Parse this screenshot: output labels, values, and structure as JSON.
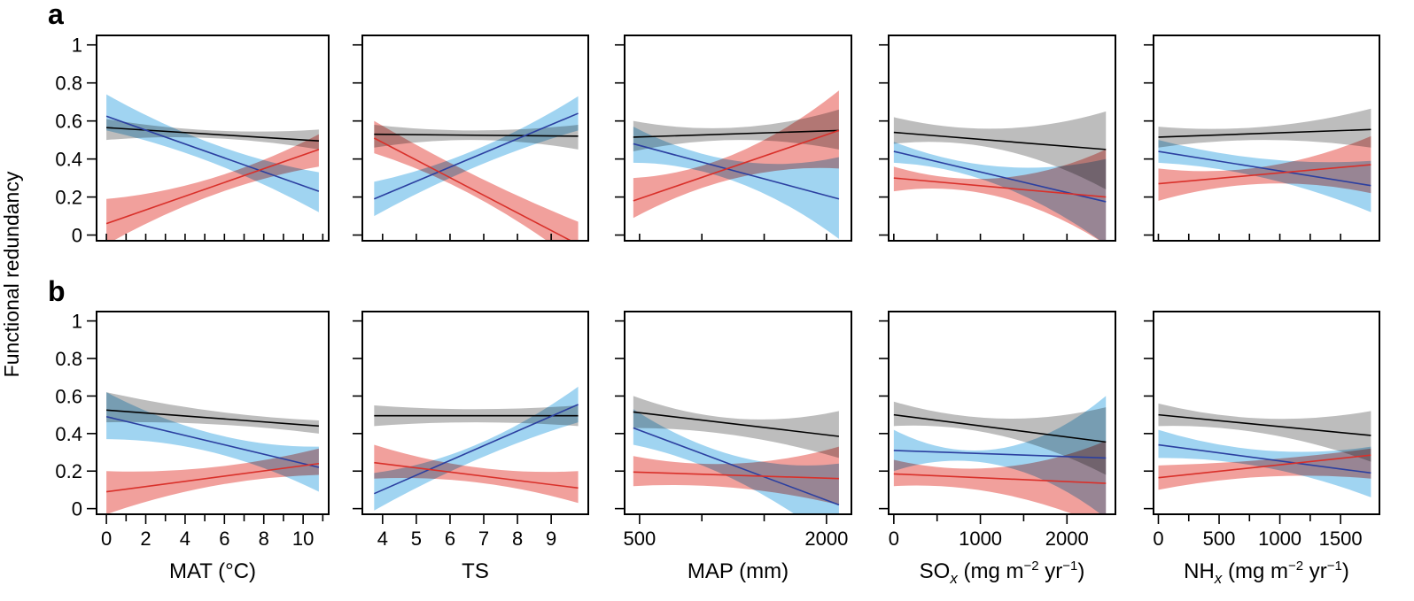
{
  "figure": {
    "ylabel": "Functional redundancy",
    "colors": {
      "black_fill": "#bdbdbd",
      "black_line": "#000000",
      "blue_fill": "#8fcdee",
      "blue_line": "#2b3fa0",
      "red_fill": "#ec7b76",
      "red_line": "#d9302a"
    },
    "rows": [
      {
        "letter": "a"
      },
      {
        "letter": "b"
      }
    ],
    "columns": [
      {
        "xlabel": "MAT (°C)",
        "xlabel_parts": [
          "MAT (°C)"
        ],
        "xlim": [
          -0.5,
          11.3
        ],
        "xticks": [
          0,
          2,
          4,
          6,
          8,
          10
        ],
        "xminor": [
          1,
          3,
          5,
          7,
          9,
          11
        ]
      },
      {
        "xlabel": "TS",
        "xlabel_parts": [
          "TS"
        ],
        "xlim": [
          3.4,
          10.1
        ],
        "xticks": [
          4,
          5,
          6,
          7,
          8,
          9
        ],
        "xminor": []
      },
      {
        "xlabel": "MAP (mm)",
        "xlabel_parts": [
          "MAP (mm)"
        ],
        "xlim": [
          380,
          2200
        ],
        "xticks": [
          500,
          2000
        ],
        "xminor": [
          1000,
          1500
        ]
      },
      {
        "xlabel": "SOx (mg m−2 yr−1)",
        "xlabel_parts": [
          "SO",
          "x",
          " (mg m",
          "−2",
          " yr",
          "−1",
          ")"
        ],
        "xlim": [
          -60,
          2560
        ],
        "xticks": [
          0,
          1000,
          2000
        ],
        "xminor": [
          500,
          1500
        ]
      },
      {
        "xlabel": "NHx (mg m−2 yr−1)",
        "xlabel_parts": [
          "NH",
          "x",
          " (mg m",
          "−2",
          " yr",
          "−1",
          ")"
        ],
        "xlim": [
          -40,
          1820
        ],
        "xticks": [
          0,
          500,
          1000,
          1500
        ],
        "xminor": [
          250,
          750,
          1250
        ]
      }
    ],
    "yticks": [
      0,
      0.2,
      0.4,
      0.6,
      0.8,
      1
    ],
    "ytick_labels": [
      "0",
      "0.2",
      "0.4",
      "0.6",
      "0.8",
      "1"
    ]
  },
  "chart_data": [
    {
      "type": "line",
      "row": "a",
      "column": "MAT (°C)",
      "ylim": [
        -0.03,
        1.05
      ],
      "x": [
        0,
        10.8
      ],
      "series": [
        {
          "name": "black",
          "y": [
            0.565,
            0.495
          ],
          "lower": [
            0.5,
            0.45
          ],
          "upper": [
            0.61,
            0.555
          ],
          "mid_lower": 0.51,
          "mid_upper": 0.55
        },
        {
          "name": "blue",
          "y": [
            0.625,
            0.23
          ],
          "lower": [
            0.55,
            0.12
          ],
          "upper": [
            0.74,
            0.33
          ],
          "mid_lower": 0.38,
          "mid_upper": 0.48
        },
        {
          "name": "red",
          "y": [
            0.06,
            0.45
          ],
          "lower": [
            -0.05,
            0.36
          ],
          "upper": [
            0.19,
            0.53
          ],
          "mid_lower": 0.21,
          "mid_upper": 0.3
        }
      ]
    },
    {
      "type": "line",
      "row": "a",
      "column": "TS",
      "ylim": [
        -0.03,
        1.05
      ],
      "x": [
        3.75,
        9.8
      ],
      "series": [
        {
          "name": "black",
          "y": [
            0.53,
            0.52
          ],
          "lower": [
            0.46,
            0.45
          ],
          "upper": [
            0.58,
            0.58
          ],
          "mid_lower": 0.5,
          "mid_upper": 0.55
        },
        {
          "name": "blue",
          "y": [
            0.19,
            0.64
          ],
          "lower": [
            0.1,
            0.55
          ],
          "upper": [
            0.28,
            0.73
          ],
          "mid_lower": 0.36,
          "mid_upper": 0.45
        },
        {
          "name": "red",
          "y": [
            0.51,
            -0.05
          ],
          "lower": [
            0.43,
            -0.15
          ],
          "upper": [
            0.6,
            0.07
          ],
          "mid_lower": 0.2,
          "mid_upper": 0.31
        }
      ]
    },
    {
      "type": "line",
      "row": "a",
      "column": "MAP (mm)",
      "ylim": [
        -0.03,
        1.05
      ],
      "x": [
        450,
        2100
      ],
      "series": [
        {
          "name": "black",
          "y": [
            0.515,
            0.55
          ],
          "lower": [
            0.44,
            0.45
          ],
          "upper": [
            0.6,
            0.66
          ],
          "mid_lower": 0.5,
          "mid_upper": 0.565
        },
        {
          "name": "blue",
          "y": [
            0.48,
            0.19
          ],
          "lower": [
            0.38,
            -0.02
          ],
          "upper": [
            0.57,
            0.41
          ],
          "mid_lower": 0.28,
          "mid_upper": 0.39
        },
        {
          "name": "red",
          "y": [
            0.18,
            0.55
          ],
          "lower": [
            0.09,
            0.35
          ],
          "upper": [
            0.3,
            0.76
          ],
          "mid_lower": 0.3,
          "mid_upper": 0.43
        }
      ]
    },
    {
      "type": "line",
      "row": "a",
      "column": "SOx (mg m−2 yr−1)",
      "ylim": [
        -0.03,
        1.05
      ],
      "x": [
        0,
        2450
      ],
      "series": [
        {
          "name": "black",
          "y": [
            0.54,
            0.45
          ],
          "lower": [
            0.48,
            0.24
          ],
          "upper": [
            0.62,
            0.65
          ],
          "mid_lower": 0.45,
          "mid_upper": 0.56
        },
        {
          "name": "blue",
          "y": [
            0.44,
            0.175
          ],
          "lower": [
            0.38,
            -0.05
          ],
          "upper": [
            0.49,
            0.4
          ],
          "mid_lower": 0.26,
          "mid_upper": 0.36
        },
        {
          "name": "red",
          "y": [
            0.3,
            0.2
          ],
          "lower": [
            0.23,
            -0.05
          ],
          "upper": [
            0.36,
            0.45
          ],
          "mid_lower": 0.2,
          "mid_upper": 0.3
        }
      ]
    },
    {
      "type": "line",
      "row": "a",
      "column": "NHx (mg m−2 yr−1)",
      "ylim": [
        -0.03,
        1.05
      ],
      "x": [
        0,
        1750
      ],
      "series": [
        {
          "name": "black",
          "y": [
            0.515,
            0.555
          ],
          "lower": [
            0.46,
            0.46
          ],
          "upper": [
            0.57,
            0.665
          ],
          "mid_lower": 0.5,
          "mid_upper": 0.57
        },
        {
          "name": "blue",
          "y": [
            0.44,
            0.26
          ],
          "lower": [
            0.38,
            0.12
          ],
          "upper": [
            0.5,
            0.39
          ],
          "mid_lower": 0.3,
          "mid_upper": 0.4
        },
        {
          "name": "red",
          "y": [
            0.27,
            0.37
          ],
          "lower": [
            0.18,
            0.22
          ],
          "upper": [
            0.35,
            0.52
          ],
          "mid_lower": 0.27,
          "mid_upper": 0.36
        }
      ]
    },
    {
      "type": "line",
      "row": "b",
      "column": "MAT (°C)",
      "ylim": [
        -0.03,
        1.05
      ],
      "x": [
        0,
        10.8
      ],
      "series": [
        {
          "name": "black",
          "y": [
            0.525,
            0.44
          ],
          "lower": [
            0.46,
            0.4
          ],
          "upper": [
            0.62,
            0.47
          ],
          "mid_lower": 0.45,
          "mid_upper": 0.52
        },
        {
          "name": "blue",
          "y": [
            0.49,
            0.22
          ],
          "lower": [
            0.37,
            0.09
          ],
          "upper": [
            0.62,
            0.33
          ],
          "mid_lower": 0.3,
          "mid_upper": 0.4
        },
        {
          "name": "red",
          "y": [
            0.09,
            0.24
          ],
          "lower": [
            -0.03,
            0.18
          ],
          "upper": [
            0.2,
            0.32
          ],
          "mid_lower": 0.12,
          "mid_upper": 0.22
        }
      ]
    },
    {
      "type": "line",
      "row": "b",
      "column": "TS",
      "ylim": [
        -0.03,
        1.05
      ],
      "x": [
        3.75,
        9.8
      ],
      "series": [
        {
          "name": "black",
          "y": [
            0.495,
            0.495
          ],
          "lower": [
            0.44,
            0.44
          ],
          "upper": [
            0.55,
            0.55
          ],
          "mid_lower": 0.46,
          "mid_upper": 0.53
        },
        {
          "name": "blue",
          "y": [
            0.08,
            0.555
          ],
          "lower": [
            -0.01,
            0.46
          ],
          "upper": [
            0.19,
            0.65
          ],
          "mid_lower": 0.26,
          "mid_upper": 0.34
        },
        {
          "name": "red",
          "y": [
            0.245,
            0.11
          ],
          "lower": [
            0.16,
            0.03
          ],
          "upper": [
            0.34,
            0.2
          ],
          "mid_lower": 0.14,
          "mid_upper": 0.22
        }
      ]
    },
    {
      "type": "line",
      "row": "b",
      "column": "MAP (mm)",
      "ylim": [
        -0.03,
        1.05
      ],
      "x": [
        450,
        2100
      ],
      "series": [
        {
          "name": "black",
          "y": [
            0.515,
            0.385
          ],
          "lower": [
            0.43,
            0.27
          ],
          "upper": [
            0.6,
            0.52
          ],
          "mid_lower": 0.39,
          "mid_upper": 0.48
        },
        {
          "name": "blue",
          "y": [
            0.43,
            0.02
          ],
          "lower": [
            0.34,
            -0.2
          ],
          "upper": [
            0.53,
            0.24
          ],
          "mid_lower": 0.15,
          "mid_upper": 0.28
        },
        {
          "name": "red",
          "y": [
            0.195,
            0.16
          ],
          "lower": [
            0.12,
            0.02
          ],
          "upper": [
            0.28,
            0.33
          ],
          "mid_lower": 0.11,
          "mid_upper": 0.24
        }
      ]
    },
    {
      "type": "line",
      "row": "b",
      "column": "SOx (mg m−2 yr−1)",
      "ylim": [
        -0.03,
        1.05
      ],
      "x": [
        0,
        2450
      ],
      "series": [
        {
          "name": "black",
          "y": [
            0.5,
            0.355
          ],
          "lower": [
            0.44,
            0.18
          ],
          "upper": [
            0.57,
            0.54
          ],
          "mid_lower": 0.39,
          "mid_upper": 0.48
        },
        {
          "name": "blue",
          "y": [
            0.31,
            0.27
          ],
          "lower": [
            0.2,
            -0.05
          ],
          "upper": [
            0.42,
            0.6
          ],
          "mid_lower": 0.23,
          "mid_upper": 0.32
        },
        {
          "name": "red",
          "y": [
            0.185,
            0.135
          ],
          "lower": [
            0.12,
            -0.1
          ],
          "upper": [
            0.26,
            0.36
          ],
          "mid_lower": 0.08,
          "mid_upper": 0.22
        }
      ]
    },
    {
      "type": "line",
      "row": "b",
      "column": "NHx (mg m−2 yr−1)",
      "ylim": [
        -0.03,
        1.05
      ],
      "x": [
        0,
        1750
      ],
      "series": [
        {
          "name": "black",
          "y": [
            0.5,
            0.39
          ],
          "lower": [
            0.44,
            0.25
          ],
          "upper": [
            0.56,
            0.52
          ],
          "mid_lower": 0.4,
          "mid_upper": 0.48
        },
        {
          "name": "blue",
          "y": [
            0.34,
            0.19
          ],
          "lower": [
            0.27,
            0.06
          ],
          "upper": [
            0.42,
            0.33
          ],
          "mid_lower": 0.22,
          "mid_upper": 0.31
        },
        {
          "name": "red",
          "y": [
            0.165,
            0.285
          ],
          "lower": [
            0.1,
            0.16
          ],
          "upper": [
            0.23,
            0.32
          ],
          "mid_lower": 0.17,
          "mid_upper": 0.26
        }
      ]
    }
  ]
}
